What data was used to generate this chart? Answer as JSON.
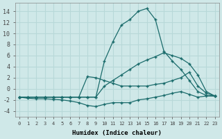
{
  "xlabel": "Humidex (Indice chaleur)",
  "background_color": "#cfe8e8",
  "grid_color": "#b8d8d8",
  "line_color": "#1a6b6b",
  "xlim": [
    -0.5,
    23.5
  ],
  "ylim": [
    -5,
    15.5
  ],
  "yticks": [
    -4,
    -2,
    0,
    2,
    4,
    6,
    8,
    10,
    12,
    14
  ],
  "xticks": [
    0,
    1,
    2,
    3,
    4,
    5,
    6,
    7,
    8,
    9,
    10,
    11,
    12,
    13,
    14,
    15,
    16,
    17,
    18,
    19,
    20,
    21,
    22,
    23
  ],
  "series": [
    {
      "x": [
        0,
        1,
        2,
        3,
        4,
        5,
        6,
        7,
        8,
        9,
        10,
        11,
        12,
        13,
        14,
        15,
        16,
        17,
        18,
        19,
        20,
        21,
        22,
        23
      ],
      "y": [
        -1.5,
        -1.5,
        -1.5,
        -1.5,
        -1.5,
        -1.5,
        -1.5,
        -1.5,
        -1.5,
        -1.5,
        5.0,
        8.5,
        11.5,
        12.5,
        14.0,
        14.5,
        12.5,
        6.8,
        5.0,
        3.5,
        1.5,
        -0.5,
        -1.2,
        -1.3
      ]
    },
    {
      "x": [
        0,
        1,
        2,
        3,
        4,
        5,
        6,
        7,
        8,
        9,
        10,
        11,
        12,
        13,
        14,
        15,
        16,
        17,
        18,
        19,
        20,
        21,
        22,
        23
      ],
      "y": [
        -1.5,
        -1.5,
        -1.5,
        -1.5,
        -1.5,
        -1.5,
        -1.5,
        -1.5,
        -1.5,
        -1.5,
        0.5,
        1.5,
        2.5,
        3.5,
        4.5,
        5.2,
        5.8,
        6.5,
        6.0,
        5.5,
        4.5,
        2.5,
        -0.5,
        -1.3
      ]
    },
    {
      "x": [
        0,
        1,
        2,
        3,
        4,
        5,
        6,
        7,
        8,
        9,
        10,
        11,
        12,
        13,
        14,
        15,
        16,
        17,
        18,
        19,
        20,
        21,
        22,
        23
      ],
      "y": [
        -1.5,
        -1.5,
        -1.5,
        -1.5,
        -1.5,
        -1.5,
        -1.5,
        -1.5,
        2.2,
        2.0,
        1.5,
        1.0,
        0.5,
        0.5,
        0.5,
        0.5,
        0.8,
        1.0,
        1.5,
        2.0,
        3.0,
        0.5,
        -0.8,
        -1.3
      ]
    },
    {
      "x": [
        0,
        1,
        2,
        3,
        4,
        5,
        6,
        7,
        8,
        9,
        10,
        11,
        12,
        13,
        14,
        15,
        16,
        17,
        18,
        19,
        20,
        21,
        22,
        23
      ],
      "y": [
        -1.5,
        -1.7,
        -1.8,
        -1.8,
        -1.9,
        -2.0,
        -2.2,
        -2.5,
        -3.0,
        -3.2,
        -2.8,
        -2.5,
        -2.5,
        -2.5,
        -2.0,
        -1.8,
        -1.5,
        -1.2,
        -0.8,
        -0.5,
        -1.0,
        -1.5,
        -1.3,
        -1.3
      ]
    }
  ]
}
